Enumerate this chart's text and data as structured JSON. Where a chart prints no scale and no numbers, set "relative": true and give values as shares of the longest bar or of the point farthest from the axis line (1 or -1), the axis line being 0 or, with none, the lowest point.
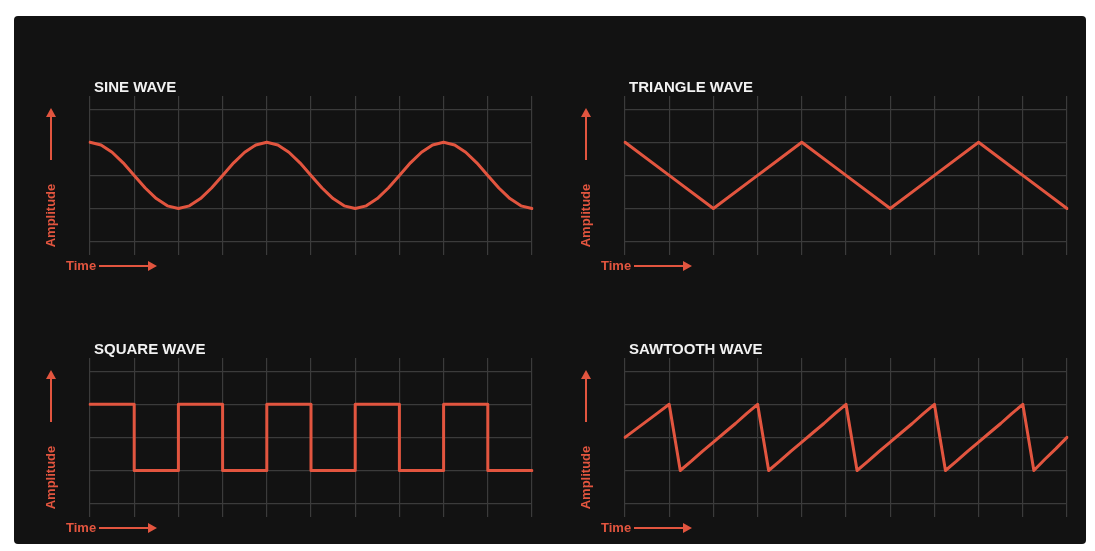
{
  "chart_data": [
    {
      "type": "line",
      "title": "SINE WAVE",
      "xlabel": "Time",
      "ylabel": "Amplitude",
      "relative": true,
      "grid": true,
      "color": "#e2553f",
      "categories": [
        null,
        null,
        null,
        null,
        null,
        null,
        null,
        null,
        null,
        null,
        null,
        null,
        null,
        null,
        null,
        null,
        null,
        null,
        null,
        null,
        null,
        null,
        null,
        null,
        null,
        null,
        null,
        null,
        null,
        null,
        null,
        null,
        null,
        null,
        null,
        null,
        null,
        null,
        null,
        null,
        null
      ],
      "values": [
        1,
        0.96,
        0.85,
        0.69,
        0.5,
        0.31,
        0.15,
        0.04,
        0,
        0.04,
        0.15,
        0.31,
        0.5,
        0.69,
        0.85,
        0.96,
        1,
        0.96,
        0.85,
        0.69,
        0.5,
        0.31,
        0.15,
        0.04,
        0,
        0.04,
        0.15,
        0.31,
        0.5,
        0.69,
        0.85,
        0.96,
        1,
        0.96,
        0.85,
        0.69,
        0.5,
        0.31,
        0.15,
        0.04,
        0
      ]
    },
    {
      "type": "line",
      "title": "TRIANGLE WAVE",
      "xlabel": "Time",
      "ylabel": "Amplitude",
      "relative": true,
      "grid": true,
      "color": "#e2553f",
      "categories": [
        null,
        null,
        null,
        null,
        null,
        null,
        null,
        null,
        null,
        null,
        null
      ],
      "values": [
        1,
        0.5,
        0,
        0.5,
        1,
        0.5,
        0,
        0.5,
        1,
        0.5,
        0
      ]
    },
    {
      "type": "step",
      "title": "SQUARE WAVE",
      "xlabel": "Time",
      "ylabel": "Amplitude",
      "relative": true,
      "grid": true,
      "color": "#e2553f",
      "categories": [
        null,
        null,
        null,
        null,
        null,
        null,
        null,
        null,
        null,
        null,
        null
      ],
      "values": [
        1,
        0,
        1,
        0,
        1,
        0,
        1,
        0,
        1,
        0,
        0
      ]
    },
    {
      "type": "line",
      "title": "SAWTOOTH WAVE",
      "xlabel": "Time",
      "ylabel": "Amplitude",
      "relative": true,
      "grid": true,
      "color": "#e2553f",
      "categories": [
        null,
        null,
        null,
        null,
        null,
        null,
        null,
        null,
        null,
        null,
        null,
        null,
        null,
        null,
        null,
        null,
        null,
        null,
        null,
        null,
        null,
        null,
        null,
        null,
        null,
        null,
        null,
        null,
        null,
        null,
        null,
        null,
        null,
        null,
        null,
        null,
        null,
        null,
        null,
        null,
        null
      ],
      "values": [
        0.5,
        0.625,
        0.75,
        0.875,
        1,
        0,
        0.14,
        0.29,
        0.43,
        0.57,
        0.71,
        0.86,
        1,
        0,
        0.14,
        0.29,
        0.43,
        0.57,
        0.71,
        0.86,
        1,
        0,
        0.14,
        0.29,
        0.43,
        0.57,
        0.71,
        0.86,
        1,
        0,
        0.14,
        0.29,
        0.43,
        0.57,
        0.71,
        0.86,
        1,
        0,
        0.17,
        0.33,
        0.5
      ]
    }
  ]
}
